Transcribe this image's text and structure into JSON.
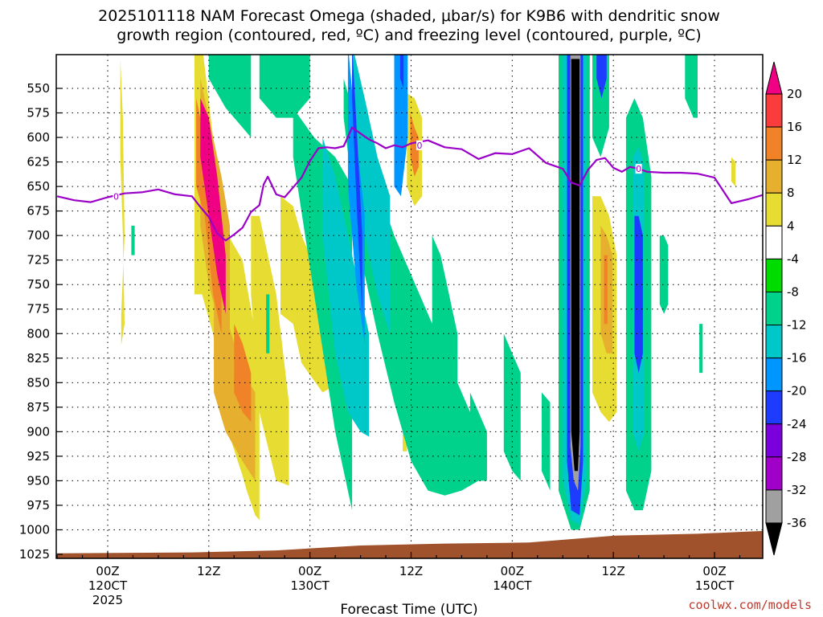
{
  "chart_data": {
    "type": "heatmap",
    "title_line1": "2025101118 NAM Forecast Omega (shaded, μbar/s) for K9B6 with dendritic snow",
    "title_line2": "growth region (contoured, red, ºC) and freezing level (contoured, purple, ºC)",
    "xlabel": "Forecast Time (UTC)",
    "credit": "coolwx.com/models",
    "y_axis": {
      "unit": "mb",
      "range": [
        1035,
        505
      ],
      "ticks": [
        550,
        575,
        600,
        625,
        650,
        675,
        700,
        725,
        750,
        775,
        800,
        825,
        850,
        875,
        900,
        925,
        950,
        975,
        1000,
        1025
      ]
    },
    "x_axis": {
      "range_hours": [
        -6,
        78
      ],
      "ticks": [
        {
          "hour": 0,
          "label": "00Z",
          "sub1": "120CT",
          "sub2": "2025"
        },
        {
          "hour": 12,
          "label": "12Z",
          "sub1": "",
          "sub2": ""
        },
        {
          "hour": 24,
          "label": "00Z",
          "sub1": "130CT",
          "sub2": ""
        },
        {
          "hour": 36,
          "label": "12Z",
          "sub1": "",
          "sub2": ""
        },
        {
          "hour": 48,
          "label": "00Z",
          "sub1": "140CT",
          "sub2": ""
        },
        {
          "hour": 60,
          "label": "12Z",
          "sub1": "",
          "sub2": ""
        },
        {
          "hour": 72,
          "label": "00Z",
          "sub1": "150CT",
          "sub2": ""
        }
      ]
    },
    "colorbar": {
      "levels": [
        -36,
        -32,
        -28,
        -24,
        -20,
        -16,
        -12,
        -8,
        -4,
        4,
        8,
        12,
        16,
        20
      ],
      "colors": [
        "#000000",
        "#a0a0a0",
        "#a000c8",
        "#7a00dc",
        "#1e3cff",
        "#0096ff",
        "#00c8c8",
        "#00d28c",
        "#00dc00",
        "#ffffff",
        "#e6dc32",
        "#e6af2d",
        "#f08228",
        "#fa3c3c",
        "#f00082"
      ]
    },
    "freezing_level": {
      "label": "0",
      "hours": [
        -6,
        -4,
        -2,
        0,
        2,
        4,
        6,
        8,
        10,
        11,
        12,
        13,
        14,
        15,
        16,
        17,
        18,
        18.5,
        19,
        20,
        21,
        22,
        23,
        24,
        25,
        26,
        27,
        28,
        29,
        30,
        31,
        32,
        33,
        34,
        35,
        36,
        38,
        40,
        42,
        44,
        46,
        48,
        50,
        52,
        54,
        55,
        56,
        57,
        58,
        59,
        60,
        61,
        62,
        63,
        64,
        66,
        68,
        70,
        72,
        74,
        76,
        78
      ],
      "pressures": [
        660,
        664,
        666,
        661,
        657,
        656,
        653,
        658,
        660,
        671,
        681,
        698,
        705,
        699,
        692,
        676,
        669,
        648,
        640,
        658,
        661,
        651,
        641,
        624,
        611,
        610,
        611,
        609,
        590,
        596,
        602,
        606,
        611,
        608,
        610,
        606,
        603,
        610,
        612,
        622,
        616,
        617,
        611,
        626,
        632,
        646,
        649,
        633,
        623,
        621,
        631,
        635,
        630,
        632,
        635,
        636,
        636,
        637,
        641,
        667,
        663,
        658
      ],
      "label_points": [
        {
          "hour": 1,
          "p": 660
        },
        {
          "hour": 37,
          "p": 608
        },
        {
          "hour": 63,
          "p": 632
        }
      ]
    },
    "ground": {
      "hours": [
        -6,
        10,
        20,
        30,
        40,
        50,
        60,
        70,
        78
      ],
      "pressures": [
        1024,
        1023,
        1021,
        1016,
        1014,
        1013,
        1006,
        1004,
        1001
      ]
    },
    "omega_areas": [
      {
        "level": 4,
        "hours": [
          1.5,
          1.8,
          2.0,
          1.6
        ],
        "p_top": [
          520,
          580,
          700,
          780
        ],
        "p_bot": [
          620,
          700,
          790,
          812
        ]
      },
      {
        "level": 4,
        "hours": [
          10.3,
          11.2,
          12.5,
          14.3,
          16.0,
          16.5,
          17.5,
          18.0
        ],
        "p_top": [
          505,
          505,
          600,
          700,
          725,
          750,
          800,
          840
        ],
        "p_bot": [
          760,
          760,
          800,
          900,
          945,
          960,
          985,
          990
        ]
      },
      {
        "level": 4,
        "hours": [
          17.0,
          18.0,
          20.0,
          21.5
        ],
        "p_top": [
          680,
          680,
          760,
          870
        ],
        "p_bot": [
          760,
          880,
          950,
          955
        ]
      },
      {
        "level": 4,
        "hours": [
          20.5,
          22.0,
          23.0,
          25.5,
          26.5
        ],
        "p_top": [
          660,
          670,
          700,
          750,
          800
        ],
        "p_bot": [
          780,
          790,
          830,
          860,
          855
        ]
      },
      {
        "level": 8,
        "hours": [
          12.6,
          14.0,
          16.0,
          17.5
        ],
        "p_top": [
          770,
          780,
          840,
          860
        ],
        "p_bot": [
          860,
          900,
          930,
          950
        ]
      },
      {
        "level": 8,
        "hours": [
          11.0,
          12.0,
          13.5,
          14.5
        ],
        "p_top": [
          540,
          580,
          640,
          690
        ],
        "p_bot": [
          690,
          750,
          800,
          870
        ]
      },
      {
        "level": 12,
        "hours": [
          15.0,
          16.0,
          17.0
        ],
        "p_top": [
          790,
          810,
          840
        ],
        "p_bot": [
          860,
          880,
          890
        ]
      },
      {
        "level": 12,
        "hours": [
          10.5,
          11.5,
          12.5,
          13.5
        ],
        "p_top": [
          560,
          600,
          640,
          700
        ],
        "p_bot": [
          650,
          680,
          760,
          800
        ]
      },
      {
        "level": 20,
        "hours": [
          11.0,
          12.0,
          13.0,
          14.0
        ],
        "p_top": [
          560,
          580,
          640,
          720
        ],
        "p_bot": [
          620,
          680,
          740,
          780
        ]
      },
      {
        "level": 4,
        "hours": [
          23.0,
          23.8,
          24.5
        ],
        "p_top": [
          700,
          720,
          760
        ],
        "p_bot": [
          740,
          760,
          790
        ]
      },
      {
        "level": 4,
        "hours": [
          35.5,
          36.4,
          37.3
        ],
        "p_top": [
          555,
          560,
          580
        ],
        "p_bot": [
          650,
          670,
          660
        ]
      },
      {
        "level": 12,
        "hours": [
          35.9,
          36.4,
          36.9
        ],
        "p_top": [
          575,
          590,
          600
        ],
        "p_bot": [
          620,
          640,
          630
        ]
      },
      {
        "level": 4,
        "hours": [
          35.0,
          35.5
        ],
        "p_top": [
          860,
          860
        ],
        "p_bot": [
          920,
          920
        ]
      },
      {
        "level": 4,
        "hours": [
          57.5,
          58.5,
          59.5,
          60.4
        ],
        "p_top": [
          660,
          660,
          680,
          720
        ],
        "p_bot": [
          860,
          880,
          890,
          880
        ]
      },
      {
        "level": 8,
        "hours": [
          58.5,
          59.2,
          59.9
        ],
        "p_top": [
          690,
          700,
          720
        ],
        "p_bot": [
          800,
          820,
          820
        ]
      },
      {
        "level": 12,
        "hours": [
          58.9,
          59.3
        ],
        "p_top": [
          720,
          720
        ],
        "p_bot": [
          790,
          790
        ]
      },
      {
        "level": 4,
        "hours": [
          74.0,
          74.5
        ],
        "p_top": [
          620,
          625
        ],
        "p_bot": [
          645,
          650
        ]
      },
      {
        "level": -8,
        "hours": [
          11.5,
          13.5,
          16.0,
          18.0,
          20.0,
          22.0,
          24.0,
          26.0,
          28.0,
          30.0
        ],
        "p_top": [
          505,
          505,
          505,
          505,
          505,
          505,
          505,
          505,
          505,
          505
        ],
        "p_bot": [
          510,
          510,
          510,
          510,
          510,
          510,
          510,
          510,
          510,
          510
        ]
      },
      {
        "level": -8,
        "hours": [
          12.0,
          14.0,
          16.0,
          17.0
        ],
        "p_top": [
          505,
          505,
          505,
          505
        ],
        "p_bot": [
          540,
          570,
          590,
          600
        ]
      },
      {
        "level": -8,
        "hours": [
          18.0,
          20.0,
          22.0,
          24.0
        ],
        "p_top": [
          505,
          505,
          505,
          505
        ],
        "p_bot": [
          560,
          580,
          580,
          560
        ]
      },
      {
        "level": -8,
        "hours": [
          28.0,
          30.0,
          32.0,
          34.0,
          36.0,
          38.0,
          40.0,
          42.0,
          44.0,
          45.0
        ],
        "p_top": [
          540,
          600,
          650,
          700,
          740,
          780,
          820,
          860,
          900,
          920
        ],
        "p_bot": [
          580,
          720,
          800,
          870,
          930,
          960,
          965,
          960,
          950,
          945
        ]
      },
      {
        "level": -8,
        "hours": [
          22.0,
          24.5,
          27.0,
          29.0
        ],
        "p_top": [
          570,
          600,
          620,
          650
        ],
        "p_bot": [
          620,
          760,
          900,
          980
        ]
      },
      {
        "level": -12,
        "hours": [
          25.5,
          27.0,
          28.5,
          30.0,
          31.0
        ],
        "p_top": [
          600,
          640,
          700,
          760,
          800
        ],
        "p_bot": [
          700,
          820,
          880,
          900,
          905
        ]
      },
      {
        "level": -12,
        "hours": [
          29.0,
          30.5,
          32.0,
          33.5
        ],
        "p_top": [
          505,
          560,
          620,
          660
        ],
        "p_bot": [
          620,
          700,
          760,
          800
        ]
      },
      {
        "level": -16,
        "hours": [
          28.5,
          29.5,
          30.5
        ],
        "p_top": [
          505,
          600,
          680
        ],
        "p_bot": [
          650,
          750,
          810
        ]
      },
      {
        "level": -20,
        "hours": [
          29.0,
          29.6,
          30.2
        ],
        "p_top": [
          505,
          600,
          700
        ],
        "p_bot": [
          560,
          680,
          780
        ]
      },
      {
        "level": -16,
        "hours": [
          34.0,
          34.8,
          35.6
        ],
        "p_top": [
          505,
          505,
          505
        ],
        "p_bot": [
          650,
          660,
          600
        ]
      },
      {
        "level": -20,
        "hours": [
          34.7,
          35.1
        ],
        "p_top": [
          505,
          505
        ],
        "p_bot": [
          540,
          550
        ]
      },
      {
        "level": -8,
        "hours": [
          38.5,
          39.5,
          40.5,
          41.5
        ],
        "p_top": [
          700,
          720,
          760,
          800
        ],
        "p_bot": [
          820,
          860,
          900,
          920
        ]
      },
      {
        "level": -8,
        "hours": [
          43.0,
          44.0,
          45.0
        ],
        "p_top": [
          860,
          880,
          900
        ],
        "p_bot": [
          930,
          950,
          950
        ]
      },
      {
        "level": -8,
        "hours": [
          47.0,
          48.0,
          49.0
        ],
        "p_top": [
          800,
          820,
          840
        ],
        "p_bot": [
          920,
          940,
          950
        ]
      },
      {
        "level": -8,
        "hours": [
          51.5,
          52.5
        ],
        "p_top": [
          860,
          870
        ],
        "p_bot": [
          940,
          960
        ]
      },
      {
        "level": -8,
        "hours": [
          53.5,
          55.0,
          56.0,
          57.2
        ],
        "p_top": [
          505,
          505,
          505,
          505
        ],
        "p_bot": [
          960,
          1000,
          1000,
          960
        ]
      },
      {
        "level": -12,
        "hours": [
          54.0,
          55.0,
          56.0,
          56.8
        ],
        "p_top": [
          505,
          505,
          505,
          505
        ],
        "p_bot": [
          950,
          990,
          995,
          950
        ]
      },
      {
        "level": -20,
        "hours": [
          54.5,
          55.0,
          56.0,
          56.4
        ],
        "p_top": [
          505,
          505,
          505,
          505
        ],
        "p_bot": [
          930,
          980,
          985,
          930
        ]
      },
      {
        "level": -32,
        "hours": [
          54.9,
          55.3,
          55.8,
          56.1
        ],
        "p_top": [
          505,
          505,
          505,
          505
        ],
        "p_bot": [
          915,
          950,
          960,
          915
        ]
      },
      {
        "level": -36,
        "hours": [
          55.0,
          55.4,
          55.8,
          56.0
        ],
        "p_top": [
          520,
          520,
          520,
          520
        ],
        "p_bot": [
          900,
          940,
          940,
          900
        ]
      },
      {
        "level": -8,
        "hours": [
          57.5,
          58.5,
          59.5
        ],
        "p_top": [
          505,
          505,
          505
        ],
        "p_bot": [
          600,
          620,
          590
        ]
      },
      {
        "level": -20,
        "hours": [
          58.0,
          58.6,
          59.2
        ],
        "p_top": [
          505,
          505,
          505
        ],
        "p_bot": [
          540,
          560,
          540
        ]
      },
      {
        "level": -8,
        "hours": [
          61.5,
          62.5,
          63.5,
          64.5
        ],
        "p_top": [
          580,
          560,
          580,
          640
        ],
        "p_bot": [
          960,
          980,
          980,
          940
        ]
      },
      {
        "level": -12,
        "hours": [
          62.3,
          63.0,
          63.7
        ],
        "p_top": [
          620,
          610,
          630
        ],
        "p_bot": [
          900,
          920,
          900
        ]
      },
      {
        "level": -20,
        "hours": [
          62.5,
          63.0,
          63.5
        ],
        "p_top": [
          680,
          680,
          700
        ],
        "p_bot": [
          820,
          840,
          820
        ]
      },
      {
        "level": -8,
        "hours": [
          65.5,
          66.0,
          66.5
        ],
        "p_top": [
          700,
          700,
          710
        ],
        "p_bot": [
          770,
          780,
          770
        ]
      },
      {
        "level": -8,
        "hours": [
          68.5,
          69.5,
          70.0
        ],
        "p_top": [
          505,
          505,
          505
        ],
        "p_bot": [
          560,
          580,
          580
        ]
      },
      {
        "level": -8,
        "hours": [
          70.2,
          70.6
        ],
        "p_top": [
          790,
          790
        ],
        "p_bot": [
          840,
          840
        ]
      },
      {
        "level": -8,
        "hours": [
          18.8,
          19.2
        ],
        "p_top": [
          760,
          760
        ],
        "p_bot": [
          820,
          820
        ]
      },
      {
        "level": -8,
        "hours": [
          2.8,
          3.2
        ],
        "p_top": [
          690,
          690
        ],
        "p_bot": [
          720,
          720
        ]
      }
    ]
  }
}
